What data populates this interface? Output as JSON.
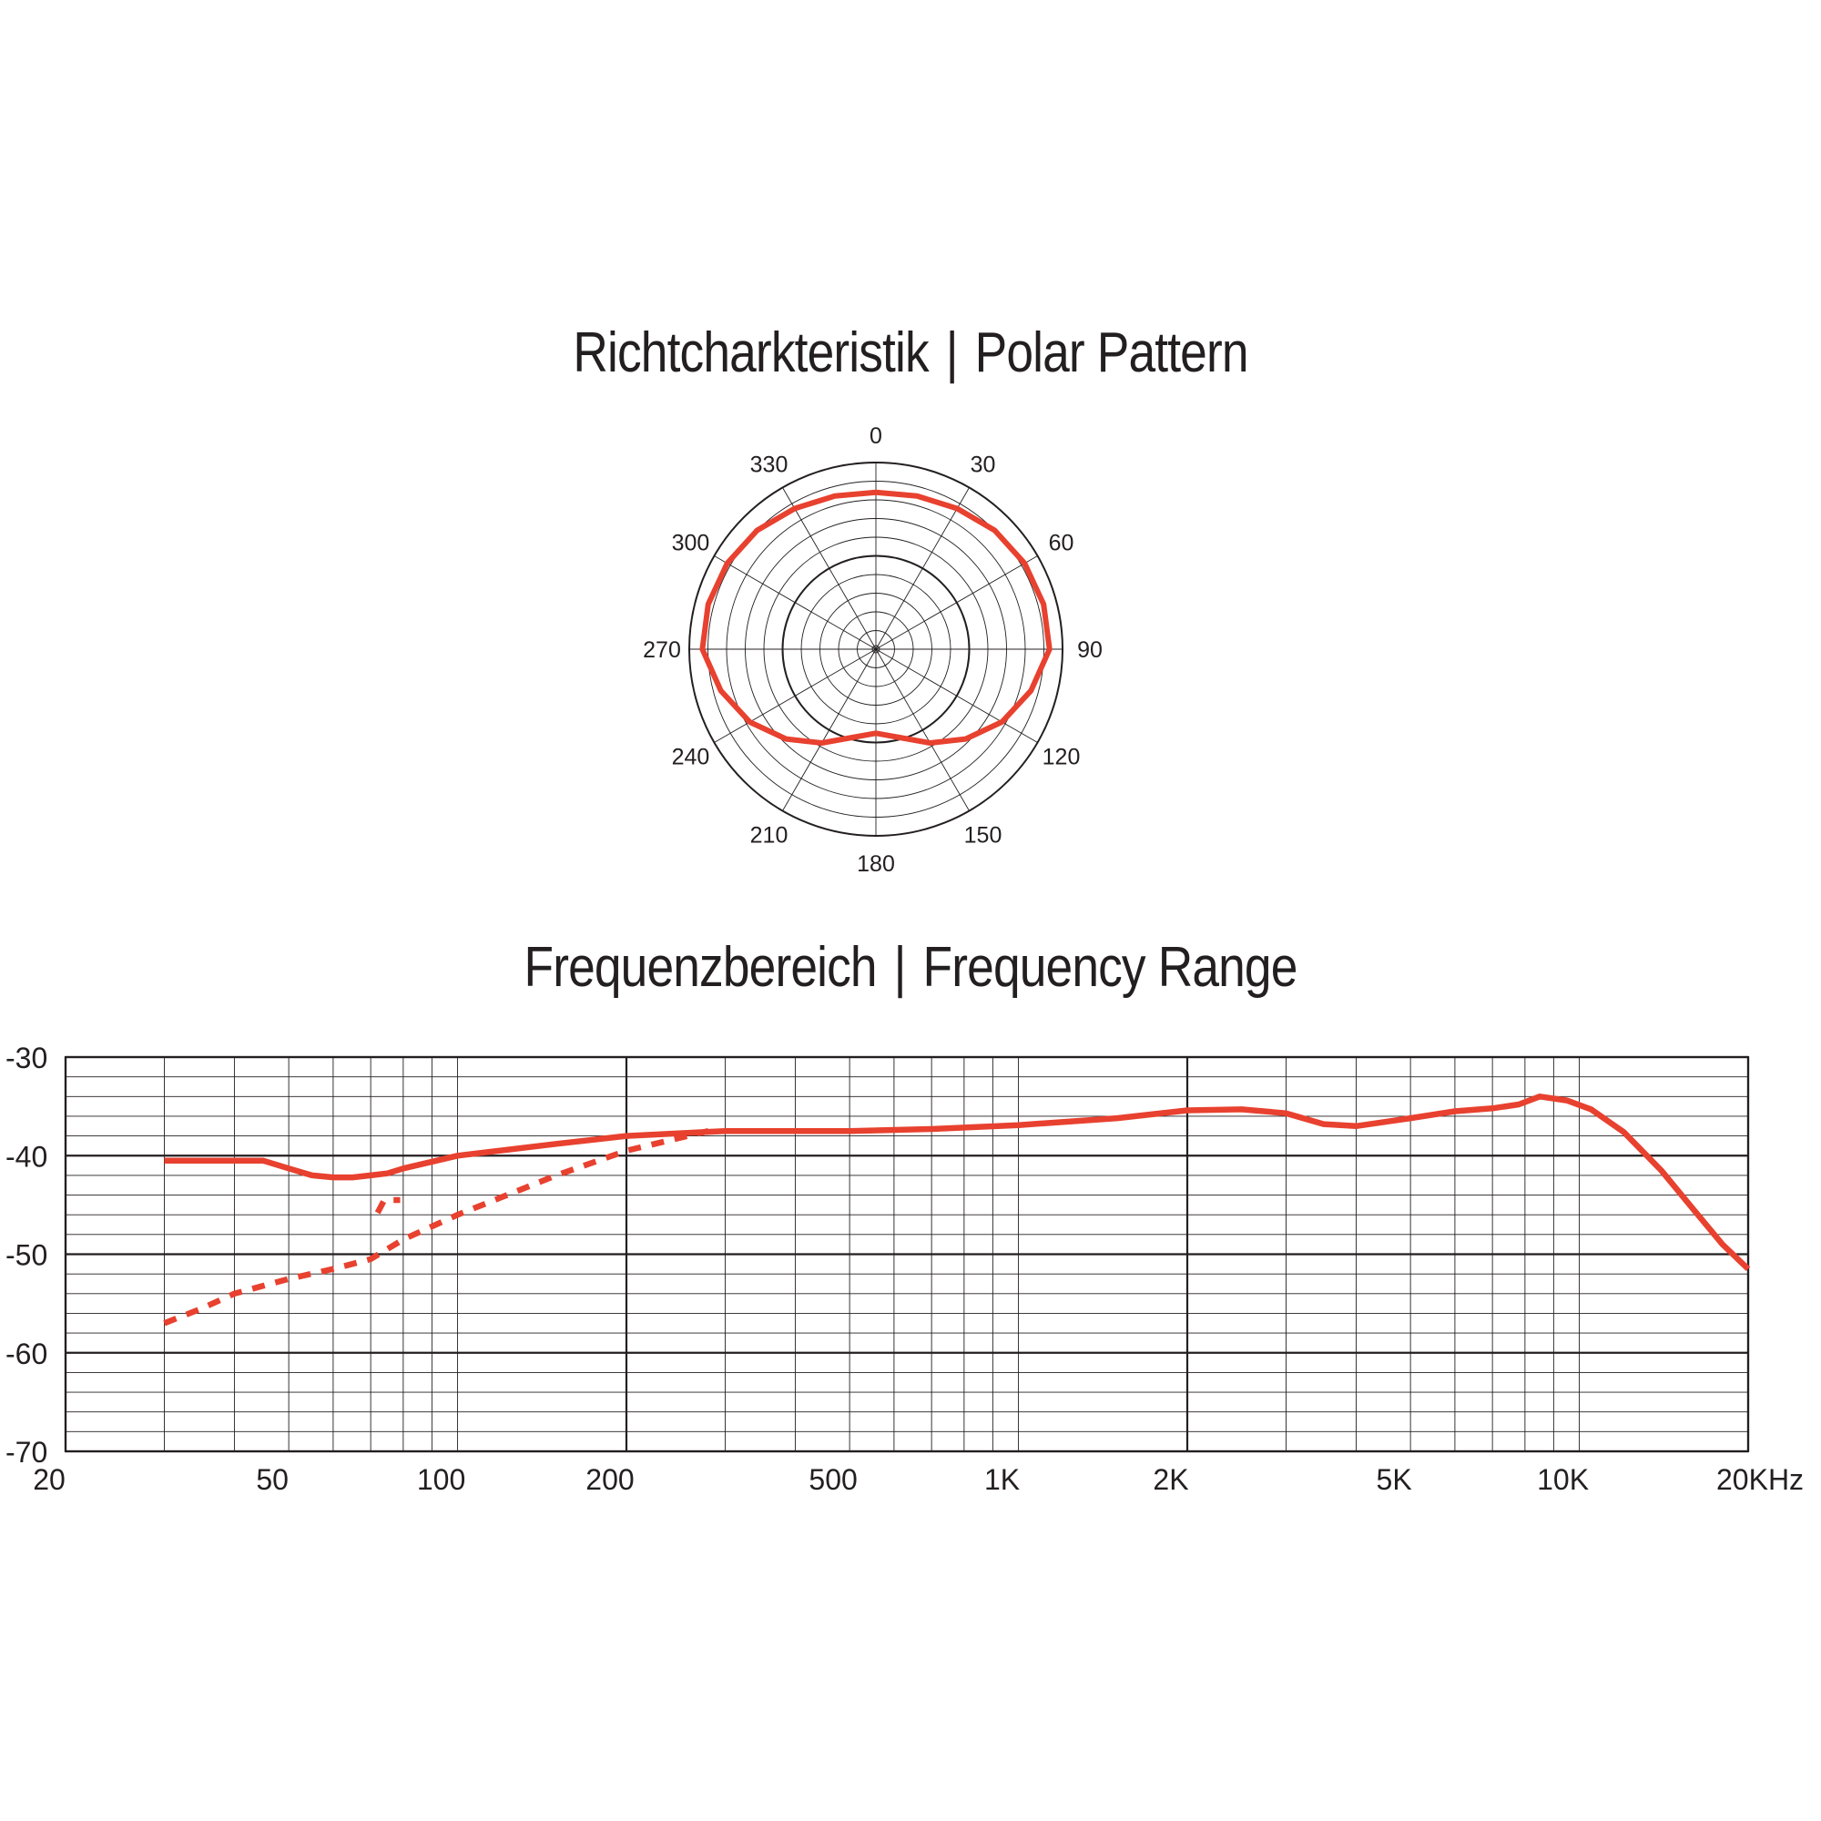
{
  "polar_title": {
    "left": "Richtcharkteristik",
    "sep": "|",
    "right": "Polar Pattern"
  },
  "freq_title": {
    "left": "Frequenzbereich",
    "sep": "|",
    "right": "Frequency Range"
  },
  "colors": {
    "curve": "#e8412f",
    "grid": "#231f20",
    "background": "#ffffff"
  },
  "chart_data": [
    {
      "type": "polar",
      "title": "Richtcharkteristik | Polar Pattern",
      "angle_labels": [
        "0",
        "30",
        "60",
        "90",
        "120",
        "150",
        "180",
        "210",
        "240",
        "270",
        "300",
        "330"
      ],
      "pattern": "cardioid",
      "series": [
        {
          "angles_deg": [
            0,
            15,
            30,
            45,
            60,
            75,
            90,
            105,
            120,
            135,
            150,
            165,
            180,
            195,
            210,
            225,
            240,
            255,
            270,
            285,
            300,
            315,
            330,
            345
          ],
          "radius_fraction": [
            0.84,
            0.85,
            0.87,
            0.9,
            0.92,
            0.93,
            0.93,
            0.86,
            0.78,
            0.68,
            0.58,
            0.49,
            0.45,
            0.49,
            0.58,
            0.68,
            0.78,
            0.86,
            0.93,
            0.93,
            0.92,
            0.9,
            0.87,
            0.85
          ]
        }
      ]
    },
    {
      "type": "line",
      "title": "Frequenzbereich | Frequency Range",
      "x_scale": "log",
      "xlim": [
        20,
        20000
      ],
      "ylim": [
        -70,
        -30
      ],
      "x_tick_labels": [
        {
          "value": 20,
          "label": "20"
        },
        {
          "value": 50,
          "label": "50"
        },
        {
          "value": 100,
          "label": "100"
        },
        {
          "value": 200,
          "label": "200"
        },
        {
          "value": 500,
          "label": "500"
        },
        {
          "value": 1000,
          "label": "1K"
        },
        {
          "value": 2000,
          "label": "2K"
        },
        {
          "value": 5000,
          "label": "5K"
        },
        {
          "value": 10000,
          "label": "10K"
        },
        {
          "value": 20000,
          "label": "20KHz"
        }
      ],
      "y_tick_labels": [
        {
          "value": -30,
          "label": "-30"
        },
        {
          "value": -40,
          "label": "-40"
        },
        {
          "value": -50,
          "label": "-50"
        },
        {
          "value": -60,
          "label": "-60"
        },
        {
          "value": -70,
          "label": "-70"
        }
      ],
      "grid": true,
      "series": [
        {
          "style": "solid",
          "x": [
            30,
            40,
            45,
            50,
            55,
            60,
            65,
            70,
            75,
            80,
            100,
            150,
            200,
            300,
            500,
            700,
            1000,
            1500,
            2000,
            2500,
            3000,
            3500,
            4000,
            5000,
            6000,
            7000,
            7800,
            8500,
            9500,
            10500,
            12000,
            14000,
            16000,
            18000,
            20000
          ],
          "y": [
            -40.5,
            -40.5,
            -40.5,
            -41.3,
            -42,
            -42.2,
            -42.2,
            -42.0,
            -41.8,
            -41.3,
            -40.0,
            -38.8,
            -38.0,
            -37.5,
            -37.5,
            -37.3,
            -36.9,
            -36.2,
            -35.4,
            -35.3,
            -35.7,
            -36.8,
            -37.0,
            -36.2,
            -35.5,
            -35.2,
            -34.8,
            -34.0,
            -34.4,
            -35.3,
            -37.6,
            -41.5,
            -45.5,
            -49.0,
            -51.5
          ]
        },
        {
          "style": "dashed",
          "x": [
            30,
            35,
            40,
            50,
            60,
            70,
            80,
            100,
            150,
            200,
            280
          ],
          "y": [
            -57,
            -55.5,
            -54,
            -52.5,
            -51.5,
            -50.5,
            -48.5,
            -46,
            -42,
            -39.5,
            -37.5
          ]
        },
        {
          "style": "dashed",
          "x": [
            72,
            74,
            79
          ],
          "y": [
            -45.8,
            -44.5,
            -44.5
          ]
        }
      ]
    }
  ]
}
